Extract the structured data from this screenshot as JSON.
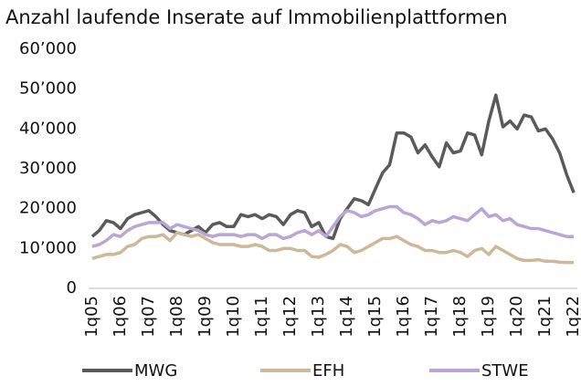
{
  "chart_data": {
    "type": "line",
    "title": "Anzahl laufende Inserate auf Immobilienplattformen",
    "categories": [
      "1q05",
      null,
      null,
      null,
      "1q06",
      null,
      null,
      null,
      "1q07",
      null,
      null,
      null,
      "1q08",
      null,
      null,
      null,
      "1q09",
      null,
      null,
      null,
      "1q10",
      null,
      null,
      null,
      "1q11",
      null,
      null,
      null,
      "1q12",
      null,
      null,
      null,
      "1q13",
      null,
      null,
      null,
      "1q14",
      null,
      null,
      null,
      "1q15",
      null,
      null,
      null,
      "1q16",
      null,
      null,
      null,
      "1q17",
      null,
      null,
      null,
      "1q18",
      null,
      null,
      null,
      "1q19",
      null,
      null,
      null,
      "1q20",
      null,
      null,
      null,
      "1q21",
      null,
      null,
      null,
      "1q22"
    ],
    "series": [
      {
        "name": "MWG",
        "color": "#5a5a5a",
        "values": [
          13000,
          14500,
          17000,
          16500,
          15000,
          17500,
          18500,
          19000,
          19500,
          18000,
          16000,
          14500,
          14000,
          13500,
          14500,
          15500,
          14000,
          16000,
          16500,
          15500,
          15500,
          18500,
          18000,
          18500,
          17500,
          18500,
          18000,
          16000,
          18500,
          19500,
          19000,
          15500,
          16500,
          13000,
          12500,
          17500,
          20000,
          22500,
          22000,
          21000,
          25000,
          29000,
          31000,
          39000,
          39000,
          38000,
          34000,
          36000,
          33000,
          30500,
          36500,
          34000,
          34500,
          39000,
          38500,
          33500,
          42000,
          48500,
          40500,
          42000,
          40000,
          43500,
          43000,
          39500,
          40000,
          37500,
          34000,
          28500,
          24000
        ]
      },
      {
        "name": "EFH",
        "color": "#cdb99a",
        "values": [
          7500,
          8000,
          8500,
          8500,
          9000,
          10500,
          11000,
          12500,
          13000,
          13000,
          13500,
          12000,
          14000,
          13500,
          13000,
          13500,
          12500,
          11500,
          11000,
          11000,
          11000,
          10500,
          10500,
          11000,
          10500,
          9500,
          9500,
          10000,
          10000,
          9500,
          9500,
          8000,
          7800,
          8500,
          9500,
          11000,
          10500,
          9000,
          9500,
          10500,
          11500,
          12500,
          12500,
          13000,
          12000,
          11000,
          10500,
          9500,
          9500,
          9000,
          9000,
          9500,
          9000,
          8000,
          9500,
          10000,
          8500,
          10500,
          9500,
          8500,
          7500,
          7000,
          7000,
          7200,
          6800,
          6800,
          6600,
          6500,
          6500
        ]
      },
      {
        "name": "STWE",
        "color": "#b9a6d4",
        "values": [
          10500,
          11000,
          12000,
          13500,
          13000,
          14500,
          15500,
          16000,
          16500,
          16500,
          16500,
          15000,
          16000,
          15500,
          15000,
          14500,
          13500,
          13000,
          13500,
          13500,
          13500,
          13000,
          13500,
          13500,
          12500,
          13500,
          13500,
          12500,
          13000,
          14000,
          14500,
          13500,
          14500,
          13000,
          15500,
          18000,
          19500,
          19000,
          18000,
          18500,
          19500,
          20000,
          20500,
          20500,
          19000,
          18500,
          17500,
          16000,
          17000,
          16500,
          17000,
          18000,
          17500,
          17000,
          18500,
          20000,
          18000,
          18500,
          17000,
          17500,
          16000,
          15500,
          15000,
          15000,
          14500,
          14000,
          13500,
          13000,
          13000
        ]
      }
    ],
    "ylim": [
      0,
      60000
    ],
    "yticks": [
      0,
      {
        "value": 10000,
        "label": "10’000"
      },
      {
        "value": 20000,
        "label": "20’000"
      },
      {
        "value": 30000,
        "label": "30’000"
      },
      {
        "value": 40000,
        "label": "40’000"
      },
      {
        "value": 50000,
        "label": "50’000"
      },
      {
        "value": 60000,
        "label": "60’000"
      }
    ],
    "grid": false
  }
}
